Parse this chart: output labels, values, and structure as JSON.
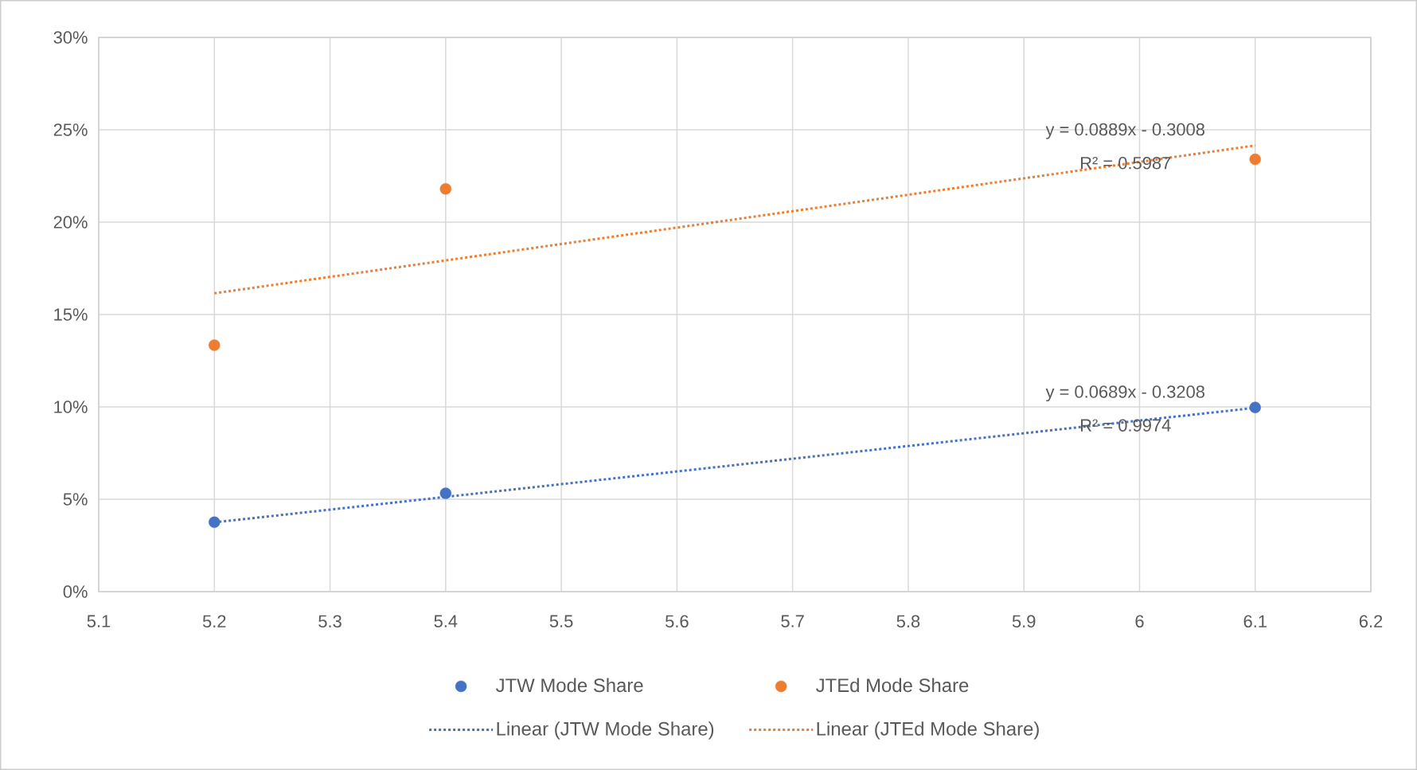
{
  "chart_data": {
    "type": "scatter",
    "xlim": [
      5.1,
      6.2
    ],
    "xticks": [
      5.1,
      5.2,
      5.3,
      5.4,
      5.5,
      5.6,
      5.7,
      5.8,
      5.9,
      6,
      6.1,
      6.2
    ],
    "ylim": [
      0,
      30
    ],
    "yticks": [
      {
        "value": 0,
        "label": "0%"
      },
      {
        "value": 5,
        "label": "5%"
      },
      {
        "value": 10,
        "label": "10%"
      },
      {
        "value": 15,
        "label": "15%"
      },
      {
        "value": 20,
        "label": "20%"
      },
      {
        "value": 25,
        "label": "25%"
      },
      {
        "value": 30,
        "label": "30%"
      }
    ],
    "grid": true,
    "legend": "bottom",
    "series": [
      {
        "name": "JTW Mode Share",
        "color": "#4472c4",
        "x": [
          5.2,
          5.4,
          6.1
        ],
        "values": [
          3.76,
          5.32,
          9.97
        ]
      },
      {
        "name": "JTEd Mode Share",
        "color": "#ed7d31",
        "x": [
          5.2,
          5.4,
          6.1
        ],
        "values": [
          13.34,
          21.8,
          23.4
        ]
      },
      {
        "name": "Linear (JTW Mode Share)",
        "type": "line",
        "line_style": "dotted",
        "color": "#4472c4",
        "x": [
          5.2,
          6.1
        ],
        "values": [
          3.75,
          9.95
        ]
      },
      {
        "name": "Linear (JTEd Mode Share)",
        "type": "line",
        "line_style": "dotted",
        "color": "#ed7d31",
        "x": [
          5.2,
          6.1
        ],
        "values": [
          16.15,
          24.15
        ]
      }
    ],
    "annotations": [
      "y = 0.0689x - 0.3208",
      "R² = 0.9974",
      "y = 0.0889x - 0.3008",
      "R² = 0.5987"
    ]
  }
}
